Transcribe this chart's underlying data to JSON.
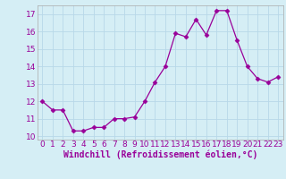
{
  "x": [
    0,
    1,
    2,
    3,
    4,
    5,
    6,
    7,
    8,
    9,
    10,
    11,
    12,
    13,
    14,
    15,
    16,
    17,
    18,
    19,
    20,
    21,
    22,
    23
  ],
  "y": [
    12.0,
    11.5,
    11.5,
    10.3,
    10.3,
    10.5,
    10.5,
    11.0,
    11.0,
    11.1,
    12.0,
    13.1,
    14.0,
    15.9,
    15.7,
    16.7,
    15.8,
    17.2,
    17.2,
    15.5,
    14.0,
    13.3,
    13.1,
    13.4
  ],
  "line_color": "#990099",
  "marker": "D",
  "markersize": 2.5,
  "linewidth": 0.9,
  "xlabel": "Windchill (Refroidissement éolien,°C)",
  "xlabel_fontsize": 7,
  "xlim": [
    -0.5,
    23.5
  ],
  "ylim": [
    9.8,
    17.5
  ],
  "yticks": [
    10,
    11,
    12,
    13,
    14,
    15,
    16,
    17
  ],
  "xticks": [
    0,
    1,
    2,
    3,
    4,
    5,
    6,
    7,
    8,
    9,
    10,
    11,
    12,
    13,
    14,
    15,
    16,
    17,
    18,
    19,
    20,
    21,
    22,
    23
  ],
  "bg_color": "#d5eef5",
  "grid_color": "#b8d8e8",
  "tick_label_fontsize": 6.5,
  "tick_color": "#990099",
  "spine_color": "#aaaaaa"
}
